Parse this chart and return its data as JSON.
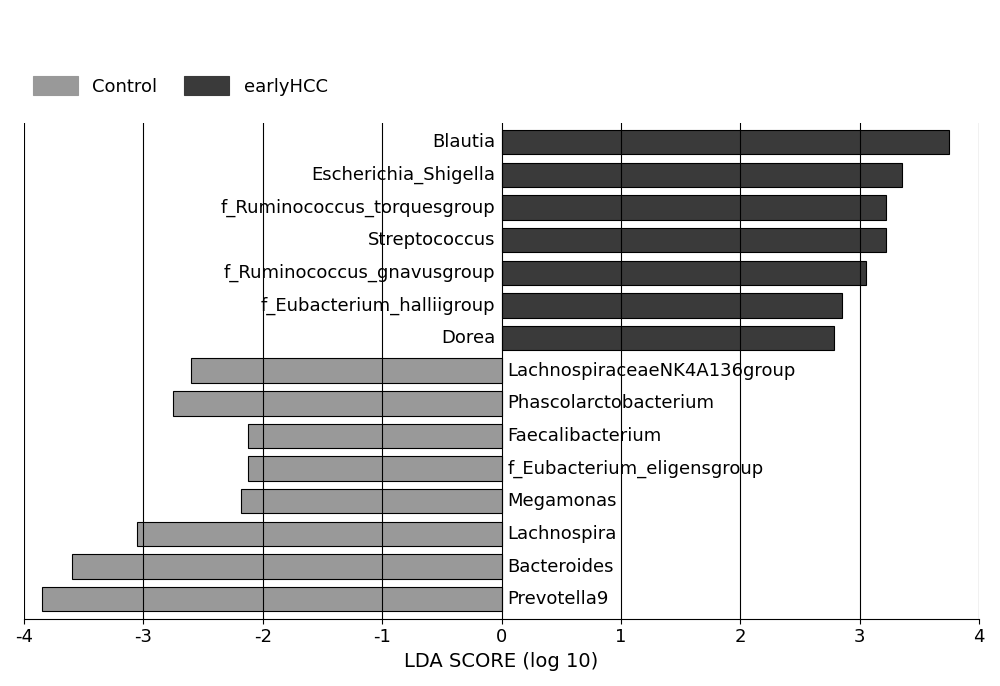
{
  "categories": [
    "Blautia",
    "Escherichia_Shigella",
    "f_Ruminococcus_torquesgroup",
    "Streptococcus",
    "f_Ruminococcus_gnavusgroup",
    "f_Eubacterium_halliigroup",
    "Dorea",
    "LachnospiraceaeNK4A136group",
    "Phascolarctobacterium",
    "Faecalibacterium",
    "f_Eubacterium_eligensgroup",
    "Megamonas",
    "Lachnospira",
    "Bacteroides",
    "Prevotella9"
  ],
  "values": [
    3.75,
    3.35,
    3.22,
    3.22,
    3.05,
    2.85,
    2.78,
    -2.6,
    -2.75,
    -2.12,
    -2.12,
    -2.18,
    -3.05,
    -3.6,
    -3.85
  ],
  "colors": [
    "#3a3a3a",
    "#3a3a3a",
    "#3a3a3a",
    "#3a3a3a",
    "#3a3a3a",
    "#3a3a3a",
    "#3a3a3a",
    "#999999",
    "#999999",
    "#999999",
    "#999999",
    "#999999",
    "#999999",
    "#999999",
    "#999999"
  ],
  "xlabel": "LDA SCORE (log 10)",
  "xlim": [
    -4,
    4
  ],
  "xticks": [
    -4,
    -3,
    -2,
    -1,
    0,
    1,
    2,
    3,
    4
  ],
  "grid_color": "#000000",
  "bar_edgecolor": "#000000",
  "background_color": "#ffffff",
  "legend_control_color": "#999999",
  "legend_earlyhcc_color": "#3a3a3a",
  "legend_control_label": "Control",
  "legend_earlyhcc_label": "earlyHCC",
  "xlabel_fontsize": 14,
  "tick_fontsize": 13,
  "label_fontsize": 13,
  "legend_fontsize": 13
}
